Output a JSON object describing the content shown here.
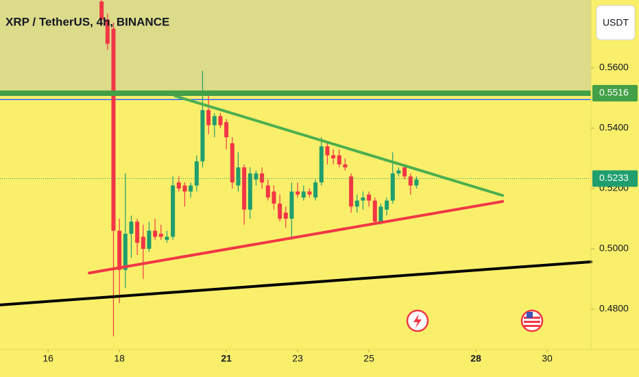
{
  "chart_data": {
    "type": "candlestick",
    "title": "XRP / TetherUS, 4h, BINANCE",
    "currency": "USDT",
    "up_color": "#1f9e6e",
    "down_color": "#f23645",
    "x": [
      17.5,
      17.667,
      17.833,
      18,
      18.167,
      18.333,
      18.5,
      18.667,
      18.833,
      19,
      19.167,
      19.333,
      19.5,
      19.667,
      19.833,
      20,
      20.167,
      20.333,
      20.5,
      20.667,
      20.833,
      21,
      21.167,
      21.333,
      21.5,
      21.667,
      21.833,
      22,
      22.167,
      22.333,
      22.5,
      22.667,
      22.833,
      23,
      23.167,
      23.333,
      23.5,
      23.667,
      23.833,
      24,
      24.167,
      24.333,
      24.5,
      24.667,
      24.833,
      25,
      25.167,
      25.333,
      25.5,
      25.667,
      25.833,
      26,
      26.167,
      26.333
    ],
    "open": [
      0.582,
      0.576,
      0.573,
      0.506,
      0.493,
      0.505,
      0.509,
      0.504,
      0.5,
      0.506,
      0.505,
      0.503,
      0.504,
      0.522,
      0.521,
      0.519,
      0.521,
      0.529,
      0.546,
      0.541,
      0.544,
      0.542,
      0.535,
      0.521,
      0.527,
      0.513,
      0.523,
      0.525,
      0.521,
      0.519,
      0.515,
      0.512,
      0.51,
      0.519,
      0.517,
      0.519,
      0.517,
      0.522,
      0.534,
      0.531,
      0.531,
      0.528,
      0.524,
      0.514,
      0.516,
      0.518,
      0.516,
      0.509,
      0.513,
      0.516,
      0.525,
      0.527,
      0.524,
      0.521
    ],
    "high": [
      0.583,
      0.578,
      0.575,
      0.51,
      0.525,
      0.511,
      0.51,
      0.508,
      0.509,
      0.51,
      0.508,
      0.506,
      0.524,
      0.524,
      0.522,
      0.522,
      0.531,
      0.559,
      0.552,
      0.545,
      0.545,
      0.543,
      0.537,
      0.532,
      0.528,
      0.527,
      0.526,
      0.527,
      0.523,
      0.521,
      0.518,
      0.514,
      0.522,
      0.522,
      0.521,
      0.52,
      0.523,
      0.537,
      0.535,
      0.533,
      0.533,
      0.53,
      0.525,
      0.518,
      0.519,
      0.519,
      0.517,
      0.515,
      0.517,
      0.532,
      0.527,
      0.528,
      0.525,
      0.524
    ],
    "low": [
      0.574,
      0.566,
      0.471,
      0.482,
      0.487,
      0.497,
      0.498,
      0.49,
      0.499,
      0.503,
      0.503,
      0.502,
      0.503,
      0.519,
      0.514,
      0.517,
      0.519,
      0.527,
      0.538,
      0.537,
      0.54,
      0.533,
      0.52,
      0.519,
      0.508,
      0.51,
      0.521,
      0.52,
      0.516,
      0.513,
      0.509,
      0.507,
      0.503,
      0.517,
      0.516,
      0.517,
      0.516,
      0.521,
      0.528,
      0.528,
      0.527,
      0.526,
      0.512,
      0.512,
      0.513,
      0.514,
      0.508,
      0.508,
      0.511,
      0.515,
      0.524,
      0.523,
      0.518,
      0.52
    ],
    "close": [
      0.576,
      0.568,
      0.506,
      0.493,
      0.505,
      0.509,
      0.502,
      0.5,
      0.506,
      0.504,
      0.504,
      0.504,
      0.521,
      0.52,
      0.519,
      0.521,
      0.529,
      0.546,
      0.541,
      0.544,
      0.541,
      0.537,
      0.522,
      0.527,
      0.513,
      0.525,
      0.525,
      0.522,
      0.517,
      0.515,
      0.51,
      0.51,
      0.519,
      0.518,
      0.519,
      0.518,
      0.522,
      0.534,
      0.531,
      0.53,
      0.528,
      0.527,
      0.514,
      0.516,
      0.517,
      0.516,
      0.509,
      0.514,
      0.516,
      0.525,
      0.526,
      0.524,
      0.521,
      0.523
    ],
    "xlim": [
      14.65,
      31.23
    ],
    "ylim": [
      0.4666,
      0.5825
    ],
    "xticks": [
      16,
      18,
      21,
      23,
      25,
      28,
      30
    ],
    "yticks": [
      {
        "value": 0.48,
        "label": "0.4800"
      },
      {
        "value": 0.5,
        "label": "0.5000"
      },
      {
        "value": 0.52,
        "label": "0.5200"
      },
      {
        "value": 0.54,
        "label": "0.5400"
      },
      {
        "value": 0.56,
        "label": "0.5600"
      }
    ],
    "price_lines": [
      {
        "value": 0.5516,
        "label": "0.5516",
        "color": "#43a047"
      },
      {
        "value": 0.5233,
        "label": "0.5233",
        "color": "#1f9e6e"
      }
    ],
    "reference_line": {
      "value": 0.5495,
      "color": "#2962ff"
    },
    "trendlines": [
      {
        "color": "#4caf50",
        "x": [
          19.558,
          28.75
        ],
        "y": [
          0.5507,
          0.5177
        ]
      },
      {
        "color": "#f23645",
        "x": [
          17.154,
          28.75
        ],
        "y": [
          0.492,
          0.5157
        ]
      },
      {
        "color": "#000000",
        "x": [
          14.65,
          31.23
        ],
        "y": [
          0.4814,
          0.4957
        ]
      }
    ]
  }
}
